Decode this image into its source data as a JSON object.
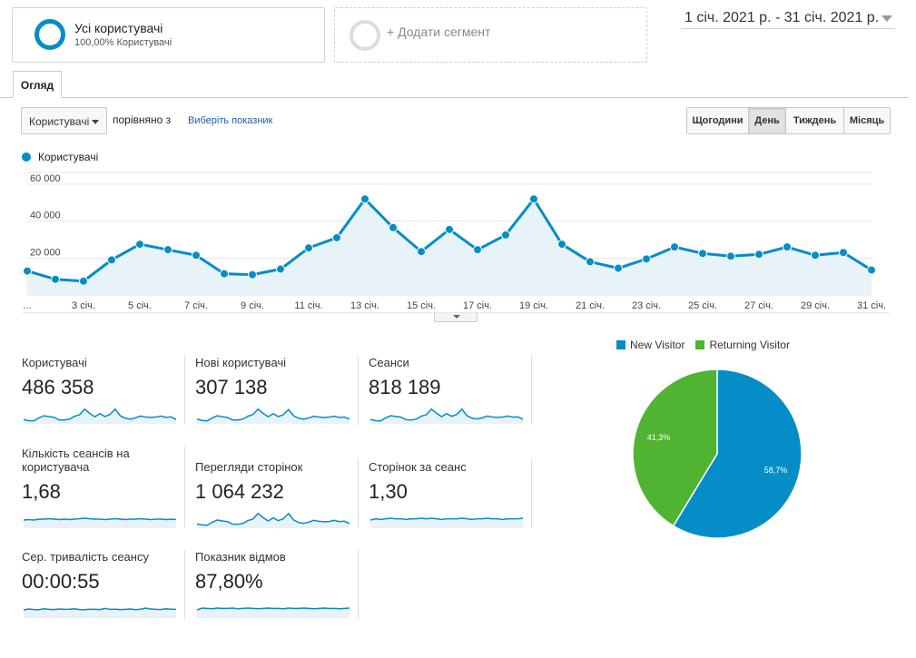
{
  "segments": {
    "active": {
      "title": "Усі користувачі",
      "subtitle": "100,00% Користувачі"
    },
    "add_label": "+ Додати сегмент"
  },
  "date_range": "1 січ. 2021 р. - 31 січ. 2021 р.",
  "tab_overview": "Огляд",
  "controls": {
    "metric_select": "Користувачі",
    "compare_text": "порівняно з",
    "choose_metric": "Виберіть показник",
    "periods": [
      {
        "label": "Щогодини",
        "active": false
      },
      {
        "label": "День",
        "active": true
      },
      {
        "label": "Тиждень",
        "active": false
      },
      {
        "label": "Місяць",
        "active": false
      }
    ]
  },
  "chart_data": [
    {
      "type": "area",
      "series": [
        {
          "name": "Користувачі",
          "values": [
            13000,
            8500,
            7500,
            19000,
            27500,
            24500,
            21500,
            11500,
            11000,
            14000,
            25500,
            31000,
            52000,
            36500,
            23500,
            35500,
            24500,
            32500,
            52000,
            27500,
            18000,
            14500,
            19500,
            26000,
            22500,
            21000,
            22000,
            26000,
            21500,
            23000,
            13500
          ]
        }
      ],
      "x": [
        "1 січ.",
        "2 січ.",
        "3 січ.",
        "4 січ.",
        "5 січ.",
        "6 січ.",
        "7 січ.",
        "8 січ.",
        "9 січ.",
        "10 січ.",
        "11 січ.",
        "12 січ.",
        "13 січ.",
        "14 січ.",
        "15 січ.",
        "16 січ.",
        "17 січ.",
        "18 січ.",
        "19 січ.",
        "20 січ.",
        "21 січ.",
        "22 січ.",
        "23 січ.",
        "24 січ.",
        "25 січ.",
        "26 січ.",
        "27 січ.",
        "28 січ.",
        "29 січ.",
        "30 січ.",
        "31 січ."
      ],
      "x_tick_labels": [
        "...",
        "3 січ.",
        "5 січ.",
        "7 січ.",
        "9 січ.",
        "11 січ.",
        "13 січ.",
        "15 січ.",
        "17 січ.",
        "19 січ.",
        "21 січ.",
        "23 січ.",
        "25 січ.",
        "27 січ.",
        "29 січ.",
        "31 січ."
      ],
      "y_tick_labels": [
        "20 000",
        "40 000",
        "60 000"
      ],
      "ylim": [
        0,
        60000
      ],
      "grid": true,
      "line_color": "#058dc7",
      "fill_color": "#e7f2f9"
    },
    {
      "type": "pie",
      "categories": [
        "New Visitor",
        "Returning Visitor"
      ],
      "values": [
        58.7,
        41.3
      ],
      "labels": [
        "58,7%",
        "41,3%"
      ],
      "colors": [
        "#058dc7",
        "#50b432"
      ],
      "legend_position": "top"
    }
  ],
  "tiles": [
    {
      "label": "Користувачі",
      "value": "486 358",
      "spark": [
        13,
        8,
        8,
        19,
        27,
        24,
        21,
        11,
        11,
        14,
        25,
        31,
        52,
        36,
        23,
        35,
        24,
        32,
        52,
        27,
        18,
        14,
        19,
        26,
        22,
        21,
        22,
        26,
        21,
        23,
        13
      ]
    },
    {
      "label": "Нові користувачі",
      "value": "307 138",
      "spark": [
        9,
        6,
        5,
        12,
        17,
        15,
        13,
        7,
        7,
        9,
        16,
        20,
        33,
        23,
        15,
        22,
        15,
        20,
        32,
        17,
        11,
        9,
        12,
        16,
        14,
        13,
        14,
        16,
        13,
        14,
        9
      ]
    },
    {
      "label": "Сеанси",
      "value": "818 189",
      "spark": [
        21,
        14,
        12,
        31,
        44,
        39,
        35,
        19,
        18,
        23,
        41,
        50,
        84,
        59,
        38,
        57,
        40,
        52,
        84,
        44,
        29,
        24,
        31,
        42,
        36,
        34,
        36,
        42,
        35,
        37,
        22
      ]
    },
    {
      "label": "Кількість сеансів на користувача",
      "value": "1,68",
      "spark": [
        1.66,
        1.67,
        1.66,
        1.68,
        1.68,
        1.69,
        1.68,
        1.67,
        1.68,
        1.67,
        1.68,
        1.69,
        1.7,
        1.69,
        1.68,
        1.68,
        1.67,
        1.68,
        1.69,
        1.68,
        1.67,
        1.68,
        1.68,
        1.69,
        1.68,
        1.67,
        1.68,
        1.68,
        1.67,
        1.68,
        1.67
      ]
    },
    {
      "label": "Перегляди сторінок",
      "value": "1 064 232",
      "spark": [
        27,
        19,
        16,
        40,
        57,
        50,
        45,
        25,
        24,
        30,
        53,
        65,
        109,
        77,
        50,
        74,
        52,
        68,
        109,
        58,
        38,
        31,
        41,
        55,
        47,
        44,
        46,
        55,
        45,
        48,
        29
      ]
    },
    {
      "label": "Сторінок за сеанс",
      "value": "1,30",
      "spark": [
        1.28,
        1.3,
        1.29,
        1.3,
        1.31,
        1.3,
        1.3,
        1.29,
        1.3,
        1.3,
        1.31,
        1.3,
        1.31,
        1.3,
        1.29,
        1.3,
        1.3,
        1.3,
        1.31,
        1.3,
        1.29,
        1.3,
        1.3,
        1.31,
        1.3,
        1.3,
        1.29,
        1.3,
        1.3,
        1.3,
        1.31
      ]
    },
    {
      "label": "Сер. тривалість сеансу",
      "value": "00:00:55",
      "spark": [
        52,
        57,
        54,
        53,
        58,
        55,
        54,
        57,
        55,
        56,
        58,
        54,
        53,
        56,
        55,
        54,
        60,
        55,
        56,
        54,
        55,
        57,
        53,
        56,
        62,
        57,
        55,
        54,
        58,
        56,
        55
      ]
    },
    {
      "label": "Показник відмов",
      "value": "87,80%",
      "spark": [
        87.4,
        87.9,
        87.8,
        87.7,
        87.9,
        87.8,
        87.8,
        87.9,
        87.7,
        87.8,
        87.9,
        87.8,
        87.7,
        87.8,
        87.9,
        87.8,
        87.8,
        87.7,
        87.9,
        87.8,
        87.8,
        87.9,
        87.8,
        87.7,
        87.8,
        87.9,
        87.8,
        87.8,
        87.7,
        87.8,
        87.9
      ]
    }
  ]
}
